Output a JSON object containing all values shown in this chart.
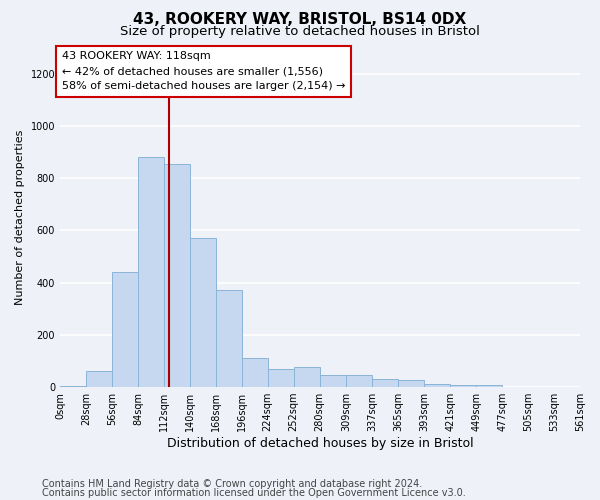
{
  "title": "43, ROOKERY WAY, BRISTOL, BS14 0DX",
  "subtitle": "Size of property relative to detached houses in Bristol",
  "xlabel": "Distribution of detached houses by size in Bristol",
  "ylabel": "Number of detached properties",
  "bar_color": "#c5d8ef",
  "bar_edge_color": "#8ab4d8",
  "vline_color": "#aa0000",
  "vline_x": 118,
  "bin_edges": [
    0,
    28,
    56,
    84,
    112,
    140,
    168,
    196,
    224,
    252,
    280,
    309,
    337,
    365,
    393,
    421,
    449,
    477,
    505,
    533,
    561
  ],
  "bar_heights": [
    3,
    60,
    440,
    880,
    855,
    570,
    370,
    110,
    68,
    78,
    48,
    45,
    30,
    28,
    10,
    8,
    8,
    0,
    0,
    0
  ],
  "tick_labels": [
    "0sqm",
    "28sqm",
    "56sqm",
    "84sqm",
    "112sqm",
    "140sqm",
    "168sqm",
    "196sqm",
    "224sqm",
    "252sqm",
    "280sqm",
    "309sqm",
    "337sqm",
    "365sqm",
    "393sqm",
    "421sqm",
    "449sqm",
    "477sqm",
    "505sqm",
    "533sqm",
    "561sqm"
  ],
  "ylim": [
    0,
    1300
  ],
  "yticks": [
    0,
    200,
    400,
    600,
    800,
    1000,
    1200
  ],
  "annotation_line1": "43 ROOKERY WAY: 118sqm",
  "annotation_line2": "← 42% of detached houses are smaller (1,556)",
  "annotation_line3": "58% of semi-detached houses are larger (2,154) →",
  "annotation_box_color": "#ffffff",
  "annotation_box_edge": "#cc0000",
  "footer1": "Contains HM Land Registry data © Crown copyright and database right 2024.",
  "footer2": "Contains public sector information licensed under the Open Government Licence v3.0.",
  "background_color": "#eef2f8",
  "grid_color": "#ffffff",
  "title_fontsize": 11,
  "subtitle_fontsize": 9.5,
  "xlabel_fontsize": 9,
  "ylabel_fontsize": 8,
  "tick_fontsize": 7,
  "footer_fontsize": 7,
  "annotation_fontsize": 8
}
